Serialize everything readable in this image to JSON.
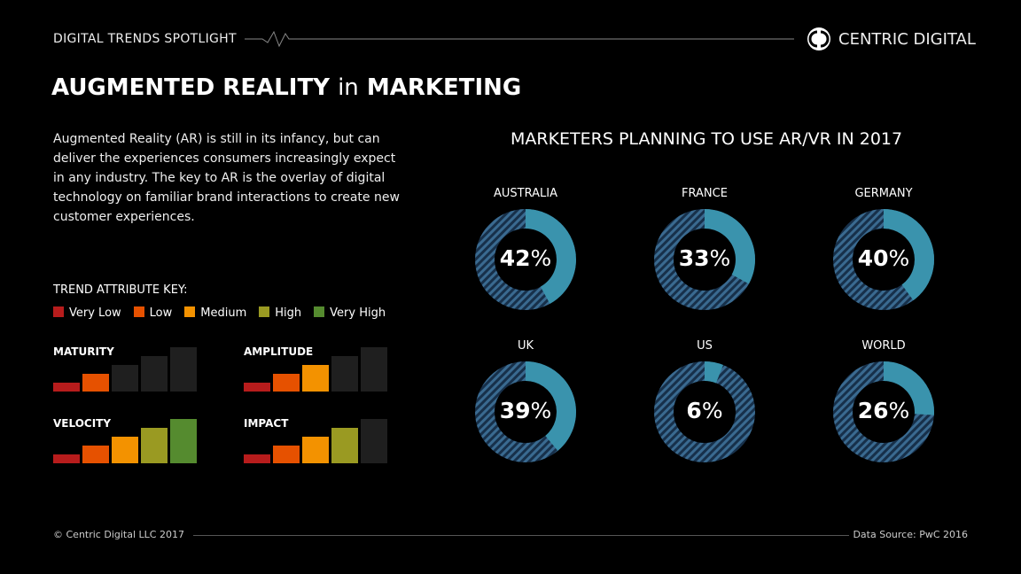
{
  "header": {
    "label": "DIGITAL TRENDS SPOTLIGHT",
    "brand": "CENTRIC DIGITAL"
  },
  "title": {
    "part1": "AUGMENTED REALITY",
    "part2": "in",
    "part3": "MARKETING"
  },
  "intro": "Augmented Reality (AR) is still in its infancy, but can deliver the experiences consumers increasingly expect in any industry. The key to AR is the overlay of digital technology on familiar brand interactions to create new customer experiences.",
  "key": {
    "title": "TREND ATTRIBUTE KEY:",
    "levels": [
      {
        "label": "Very Low",
        "color": "#b71c1c"
      },
      {
        "label": "Low",
        "color": "#e65100"
      },
      {
        "label": "Medium",
        "color": "#f39200"
      },
      {
        "label": "High",
        "color": "#9a9a22"
      },
      {
        "label": "Very High",
        "color": "#558b2f"
      }
    ]
  },
  "attributes": [
    {
      "name": "MATURITY",
      "level": 2
    },
    {
      "name": "AMPLITUDE",
      "level": 3
    },
    {
      "name": "VELOCITY",
      "level": 5
    },
    {
      "name": "IMPACT",
      "level": 4
    }
  ],
  "chart_data": {
    "type": "donut",
    "title": "MARKETERS PLANNING TO USE AR/VR IN 2017",
    "categories": [
      "AUSTRALIA",
      "FRANCE",
      "GERMANY",
      "UK",
      "US",
      "WORLD"
    ],
    "values": [
      42,
      33,
      40,
      39,
      6,
      26
    ],
    "unit": "%",
    "colors": {
      "filled": "#3a93ad",
      "remaining": "#2a4f70"
    }
  },
  "footer": {
    "copyright": "© Centric Digital LLC 2017",
    "source": "Data Source: PwC 2016"
  }
}
